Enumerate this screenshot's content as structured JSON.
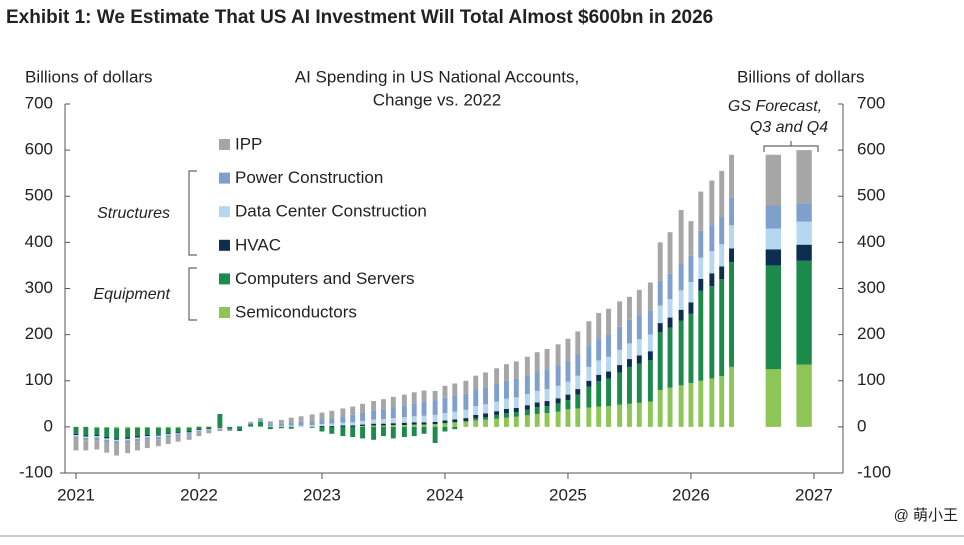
{
  "header": "Exhibit 1: We Estimate That US AI Investment Will Total Almost $600bn in 2026",
  "watermark": "@ 萌小王",
  "chart_data": {
    "type": "stacked-bar",
    "title": "AI Spending in US National Accounts,",
    "subtitle": "Change vs. 2022",
    "y_label": "Billions of dollars",
    "y2_label": "Billions of dollars",
    "annotations": [
      "Structures",
      "Equipment",
      "GS Forecast,",
      "Q3 and Q4"
    ],
    "x": [
      2021.0,
      2021.08,
      2021.17,
      2021.25,
      2021.33,
      2021.42,
      2021.5,
      2021.58,
      2021.67,
      2021.75,
      2021.83,
      2021.92,
      2022.0,
      2022.08,
      2022.17,
      2022.25,
      2022.33,
      2022.42,
      2022.5,
      2022.58,
      2022.67,
      2022.75,
      2022.83,
      2022.92,
      2023.0,
      2023.08,
      2023.17,
      2023.25,
      2023.33,
      2023.42,
      2023.5,
      2023.58,
      2023.67,
      2023.75,
      2023.83,
      2023.92,
      2024.0,
      2024.08,
      2024.17,
      2024.25,
      2024.33,
      2024.42,
      2024.5,
      2024.58,
      2024.67,
      2024.75,
      2024.83,
      2024.92,
      2025.0,
      2025.08,
      2025.17,
      2025.25,
      2025.33,
      2025.42,
      2025.5,
      2025.58,
      2025.67,
      2025.75,
      2025.83,
      2025.92,
      2026.0,
      2026.08,
      2026.17,
      2026.25,
      2026.33,
      2026.67,
      2026.92
    ],
    "xlim": [
      2020.87,
      2027.22
    ],
    "xticks": [
      2021,
      2022,
      2023,
      2024,
      2025,
      2026,
      2027
    ],
    "ylim": [
      -100,
      700
    ],
    "yticks": [
      -100,
      0,
      100,
      200,
      300,
      400,
      500,
      600,
      700
    ],
    "y2lim": [
      -100,
      700
    ],
    "y2ticks": [
      -100,
      0,
      100,
      200,
      300,
      400,
      500,
      600,
      700
    ],
    "stacked": true,
    "series": [
      {
        "name": "IPP",
        "color": "#a6a6a6",
        "values": [
          -25,
          -22,
          -20,
          -22,
          -25,
          -22,
          -20,
          -18,
          -15,
          -15,
          -12,
          -10,
          -8,
          -6,
          -5,
          -3,
          0,
          2,
          4,
          6,
          8,
          10,
          12,
          14,
          15,
          16,
          17,
          18,
          19,
          20,
          21,
          22,
          23,
          24,
          25,
          20,
          26,
          27,
          28,
          30,
          32,
          34,
          36,
          38,
          40,
          42,
          44,
          46,
          48,
          50,
          52,
          55,
          55,
          55,
          50,
          55,
          60,
          83,
          90,
          118,
          75,
          85,
          95,
          100,
          93,
          110,
          115
        ]
      },
      {
        "name": "Power Construction",
        "color": "#7f9fcc",
        "values": [
          -5,
          -5,
          -6,
          -6,
          -6,
          -6,
          -5,
          -5,
          -5,
          -4,
          -4,
          -4,
          -3,
          -2,
          -1,
          0,
          2,
          3,
          4,
          5,
          6,
          7,
          8,
          9,
          10,
          12,
          14,
          16,
          18,
          20,
          22,
          24,
          26,
          28,
          30,
          32,
          33,
          34,
          35,
          36,
          37,
          38,
          39,
          40,
          41,
          42,
          43,
          44,
          45,
          46,
          47,
          48,
          49,
          50,
          51,
          52,
          53,
          54,
          55,
          56,
          57,
          58,
          58,
          59,
          60,
          50,
          40
        ]
      },
      {
        "name": "Data Center Construction",
        "color": "#b7d7f0",
        "values": [
          -3,
          -3,
          -3,
          -3,
          -3,
          -3,
          -3,
          -3,
          -3,
          -2,
          -2,
          -2,
          -2,
          -1,
          -1,
          0,
          0,
          0,
          0,
          1,
          1,
          2,
          2,
          3,
          4,
          5,
          6,
          7,
          8,
          9,
          10,
          11,
          12,
          13,
          14,
          15,
          16,
          17,
          18,
          19,
          20,
          21,
          22,
          23,
          24,
          25,
          26,
          27,
          28,
          29,
          30,
          31,
          32,
          33,
          34,
          35,
          36,
          38,
          40,
          42,
          44,
          46,
          48,
          48,
          50,
          45,
          50
        ]
      },
      {
        "name": "HVAC",
        "color": "#0d2f4f",
        "values": [
          -3,
          -3,
          -3,
          -3,
          -3,
          -3,
          -3,
          -3,
          -2,
          -2,
          -2,
          -2,
          -2,
          -2,
          -2,
          -1,
          -1,
          0,
          0,
          0,
          0,
          0,
          0,
          0,
          2,
          2,
          3,
          3,
          3,
          4,
          4,
          4,
          5,
          5,
          5,
          5,
          6,
          6,
          7,
          7,
          8,
          8,
          9,
          9,
          10,
          10,
          11,
          11,
          12,
          12,
          13,
          14,
          15,
          16,
          17,
          18,
          19,
          20,
          22,
          24,
          25,
          26,
          28,
          28,
          30,
          35,
          35
        ]
      },
      {
        "name": "Computers and Servers",
        "color": "#1c8a4b",
        "values": [
          -15,
          -18,
          -15,
          -20,
          -22,
          -20,
          -18,
          -15,
          -15,
          -12,
          -10,
          -8,
          -5,
          -3,
          28,
          -5,
          -8,
          5,
          10,
          -5,
          -3,
          -4,
          0,
          -2,
          -10,
          -15,
          -20,
          -22,
          -25,
          -28,
          -20,
          -25,
          -22,
          -20,
          -15,
          -35,
          -10,
          -5,
          0,
          5,
          5,
          8,
          10,
          10,
          12,
          15,
          15,
          18,
          20,
          30,
          45,
          55,
          60,
          70,
          80,
          85,
          90,
          125,
          130,
          140,
          150,
          195,
          200,
          210,
          227,
          225,
          225
        ]
      },
      {
        "name": "Semiconductors",
        "color": "#8dc656",
        "values": [
          0,
          0,
          -2,
          -2,
          -3,
          -3,
          -2,
          -2,
          -2,
          -2,
          -2,
          -2,
          1,
          1,
          0,
          0,
          0,
          1,
          1,
          0,
          0,
          1,
          1,
          1,
          0,
          0,
          0,
          0,
          2,
          3,
          3,
          4,
          4,
          5,
          5,
          6,
          8,
          10,
          12,
          14,
          16,
          18,
          20,
          22,
          25,
          28,
          30,
          33,
          38,
          40,
          42,
          44,
          45,
          48,
          50,
          52,
          55,
          80,
          85,
          90,
          95,
          100,
          105,
          110,
          130,
          125,
          135
        ]
      }
    ]
  }
}
